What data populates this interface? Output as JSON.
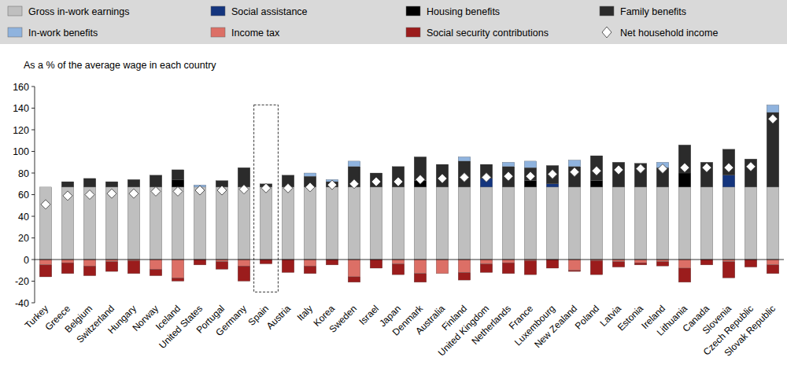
{
  "chart_data": {
    "type": "bar",
    "stacked": true,
    "grid": false,
    "legend": "top",
    "y_axis_label": "As a % of the average wage in each country",
    "categories": [
      "Turkey",
      "Greece",
      "Belgium",
      "Switzerland",
      "Hungary",
      "Norway",
      "Iceland",
      "United States",
      "Portugal",
      "Germany",
      "Spain",
      "Austria",
      "Italy",
      "Korea",
      "Sweden",
      "Israel",
      "Japan",
      "Denmark",
      "Australia",
      "Finland",
      "United Kingdom",
      "Netherlands",
      "France",
      "Luxembourg",
      "New Zealand",
      "Poland",
      "Latvia",
      "Estonia",
      "Ireland",
      "Lithuania",
      "Canada",
      "Slovenia",
      "Czech Republic",
      "Slovak Republic"
    ],
    "ylim": [
      -40,
      160
    ],
    "yticks": [
      -40,
      -20,
      0,
      20,
      40,
      60,
      80,
      100,
      120,
      140,
      160
    ],
    "series": [
      {
        "name": "Gross in-work earnings",
        "type": "bar",
        "color": "#bfbfbf",
        "values": [
          67,
          67,
          67,
          67,
          67,
          67,
          67,
          67,
          67,
          67,
          67,
          67,
          67,
          67,
          67,
          67,
          67,
          67,
          67,
          67,
          67,
          67,
          67,
          67,
          67,
          67,
          67,
          67,
          67,
          67,
          67,
          67,
          67,
          67
        ]
      },
      {
        "name": "Social assistance",
        "type": "bar",
        "color": "#14357e",
        "values": [
          0,
          0,
          0,
          0,
          0,
          0,
          0,
          0,
          0,
          0,
          0,
          0,
          0,
          0,
          0,
          0,
          0,
          0,
          0,
          0,
          8,
          0,
          0,
          3,
          0,
          0,
          0,
          0,
          0,
          0,
          0,
          11,
          0,
          0
        ]
      },
      {
        "name": "Housing benefits",
        "type": "bar",
        "color": "#000000",
        "values": [
          0,
          0,
          0,
          0,
          0,
          0,
          7,
          0,
          0,
          0,
          0,
          0,
          0,
          0,
          0,
          0,
          0,
          6,
          0,
          0,
          0,
          0,
          6,
          0,
          0,
          6,
          0,
          0,
          0,
          13,
          0,
          0,
          0,
          0
        ]
      },
      {
        "name": "Family benefits",
        "type": "bar",
        "color": "#2b2b2b",
        "values": [
          0,
          5,
          8,
          5,
          7,
          11,
          9,
          0,
          6,
          18,
          3,
          11,
          10,
          5,
          19,
          13,
          19,
          22,
          21,
          24,
          13,
          19,
          12,
          17,
          19,
          23,
          23,
          22,
          18,
          26,
          23,
          24,
          26,
          69
        ]
      },
      {
        "name": "In-work benefits",
        "type": "bar",
        "color": "#8fb3de",
        "values": [
          0,
          0,
          0,
          0,
          0,
          0,
          0,
          2,
          0,
          0,
          0,
          0,
          3,
          2,
          5,
          0,
          0,
          0,
          0,
          4,
          0,
          4,
          6,
          0,
          6,
          0,
          0,
          0,
          5,
          0,
          0,
          0,
          0,
          7
        ]
      },
      {
        "name": "Income tax",
        "type": "bar",
        "color": "#dc6f66",
        "values": [
          -5,
          -3,
          -6,
          -2,
          -1,
          -9,
          -17,
          0,
          -2,
          -6,
          0,
          0,
          -6,
          0,
          -16,
          0,
          -4,
          -13,
          -13,
          -12,
          -4,
          -3,
          -1,
          0,
          -10,
          -1,
          -2,
          -3,
          -2,
          -8,
          0,
          -2,
          0,
          -5
        ]
      },
      {
        "name": "Social security contributions",
        "type": "bar",
        "color": "#9b1c1c",
        "values": [
          -11,
          -10,
          -9,
          -9,
          -12,
          -6,
          -3,
          -5,
          -7,
          -14,
          -4,
          -12,
          -7,
          -5,
          -5,
          -8,
          -10,
          -8,
          0,
          -7,
          -8,
          -10,
          -13,
          -8,
          -1,
          -13,
          -5,
          -2,
          -4,
          -13,
          -5,
          -15,
          -7,
          -8
        ]
      },
      {
        "name": "Net household income",
        "type": "scatter",
        "marker": "diamond",
        "color": "#ffffff",
        "values": [
          51,
          59,
          60,
          61,
          61,
          63,
          63,
          64,
          64,
          65,
          66,
          66,
          67,
          69,
          70,
          72,
          72,
          74,
          75,
          76,
          76,
          77,
          77,
          79,
          81,
          82,
          83,
          84,
          84,
          85,
          85,
          85,
          86,
          130
        ]
      }
    ]
  }
}
